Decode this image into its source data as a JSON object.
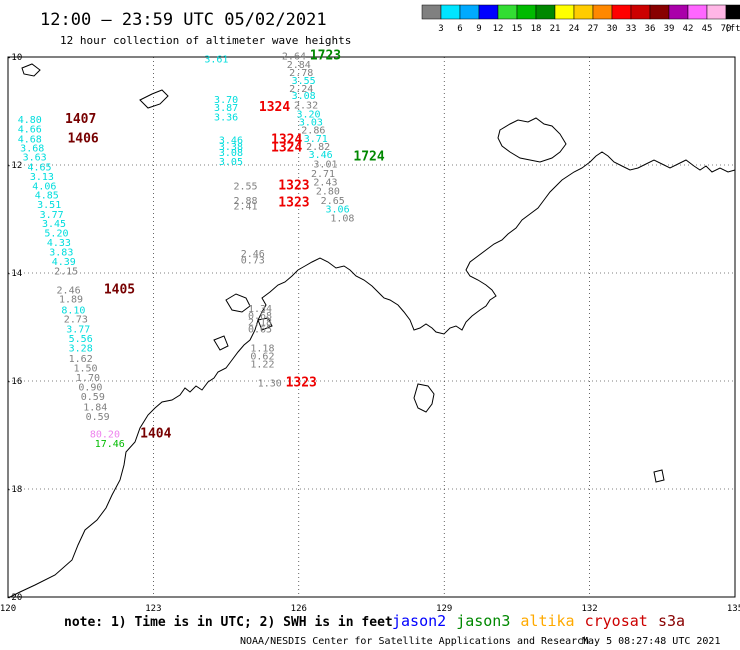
{
  "title": "12:00 – 23:59 UTC 05/02/2021",
  "subtitle": "12 hour collection of altimeter wave heights",
  "colorbar": {
    "colors": [
      "#808080",
      "#00e5ff",
      "#00aaff",
      "#0000ff",
      "#33dd33",
      "#00bb00",
      "#008800",
      "#ffff00",
      "#ffcc00",
      "#ff8800",
      "#ff0000",
      "#cc0000",
      "#880000",
      "#aa00aa",
      "#ff66ff",
      "#ffb6e6",
      "#000000"
    ],
    "labels": [
      "3",
      "6",
      "9",
      "12",
      "15",
      "18",
      "21",
      "24",
      "27",
      "30",
      "33",
      "36",
      "39",
      "42",
      "45",
      "70"
    ],
    "unit": "(ft)"
  },
  "axes": {
    "lon_ticks": [
      "120",
      "123",
      "126",
      "129",
      "132",
      "135"
    ],
    "lat_ticks": [
      "-10",
      "-12",
      "-14",
      "-16",
      "-18",
      "-20"
    ]
  },
  "obs": [
    {
      "lon": 124.3,
      "lat": -10.1,
      "v": "3.61",
      "c": "#00dddd"
    },
    {
      "lon": 125.9,
      "lat": -10.05,
      "v": "2.64",
      "c": "#808080"
    },
    {
      "lon": 126.0,
      "lat": -10.2,
      "v": "2.84",
      "c": "#808080"
    },
    {
      "lon": 126.05,
      "lat": -10.35,
      "v": "2.78",
      "c": "#808080"
    },
    {
      "lon": 126.1,
      "lat": -10.5,
      "v": "3.55",
      "c": "#00dddd"
    },
    {
      "lon": 126.05,
      "lat": -10.65,
      "v": "2.24",
      "c": "#808080"
    },
    {
      "lon": 126.1,
      "lat": -10.78,
      "v": "3.08",
      "c": "#00dddd"
    },
    {
      "lon": 126.15,
      "lat": -10.95,
      "v": "2.32",
      "c": "#808080"
    },
    {
      "lon": 126.2,
      "lat": -11.12,
      "v": "3.20",
      "c": "#00dddd"
    },
    {
      "lon": 126.25,
      "lat": -11.27,
      "v": "3.03",
      "c": "#00dddd"
    },
    {
      "lon": 126.3,
      "lat": -11.42,
      "v": "2.86",
      "c": "#808080"
    },
    {
      "lon": 126.35,
      "lat": -11.57,
      "v": "3.71",
      "c": "#00dddd"
    },
    {
      "lon": 126.4,
      "lat": -11.72,
      "v": "2.82",
      "c": "#808080"
    },
    {
      "lon": 126.45,
      "lat": -11.87,
      "v": "3.46",
      "c": "#00dddd"
    },
    {
      "lon": 126.55,
      "lat": -12.05,
      "v": "3.01",
      "c": "#808080"
    },
    {
      "lon": 126.5,
      "lat": -12.22,
      "v": "2.71",
      "c": "#808080"
    },
    {
      "lon": 126.55,
      "lat": -12.38,
      "v": "2.43",
      "c": "#808080"
    },
    {
      "lon": 126.6,
      "lat": -12.55,
      "v": "2.80",
      "c": "#808080"
    },
    {
      "lon": 126.7,
      "lat": -12.72,
      "v": "2.65",
      "c": "#808080"
    },
    {
      "lon": 126.8,
      "lat": -12.88,
      "v": "3.06",
      "c": "#00dddd"
    },
    {
      "lon": 126.9,
      "lat": -13.05,
      "v": "1.08",
      "c": "#808080"
    },
    {
      "lon": 124.5,
      "lat": -10.85,
      "v": "3.70",
      "c": "#00dddd"
    },
    {
      "lon": 124.5,
      "lat": -11.0,
      "v": "3.87",
      "c": "#00dddd"
    },
    {
      "lon": 124.5,
      "lat": -11.18,
      "v": "3.36",
      "c": "#00dddd"
    },
    {
      "lon": 124.6,
      "lat": -11.6,
      "v": "3.46",
      "c": "#00dddd"
    },
    {
      "lon": 124.6,
      "lat": -11.72,
      "v": "3.38",
      "c": "#00dddd"
    },
    {
      "lon": 124.6,
      "lat": -11.83,
      "v": "3.08",
      "c": "#00dddd"
    },
    {
      "lon": 124.6,
      "lat": -12.0,
      "v": "3.05",
      "c": "#00dddd"
    },
    {
      "lon": 124.9,
      "lat": -12.45,
      "v": "2.55",
      "c": "#808080"
    },
    {
      "lon": 124.9,
      "lat": -12.72,
      "v": "2.88",
      "c": "#808080"
    },
    {
      "lon": 124.9,
      "lat": -12.82,
      "v": "2.41",
      "c": "#808080"
    },
    {
      "lon": 125.05,
      "lat": -13.7,
      "v": "2.46",
      "c": "#808080"
    },
    {
      "lon": 125.05,
      "lat": -13.82,
      "v": "0.73",
      "c": "#808080"
    },
    {
      "lon": 125.2,
      "lat": -14.72,
      "v": "1.34",
      "c": "#808080"
    },
    {
      "lon": 125.2,
      "lat": -14.85,
      "v": "0.68",
      "c": "#808080"
    },
    {
      "lon": 125.2,
      "lat": -14.97,
      "v": "2.18",
      "c": "#808080"
    },
    {
      "lon": 125.2,
      "lat": -15.1,
      "v": "0.65",
      "c": "#808080"
    },
    {
      "lon": 125.25,
      "lat": -15.45,
      "v": "1.18",
      "c": "#808080"
    },
    {
      "lon": 125.25,
      "lat": -15.6,
      "v": "0.62",
      "c": "#808080"
    },
    {
      "lon": 125.25,
      "lat": -15.75,
      "v": "1.22",
      "c": "#808080"
    },
    {
      "lon": 125.4,
      "lat": -16.1,
      "v": "1.30",
      "c": "#808080"
    },
    {
      "lon": 120.45,
      "lat": -11.22,
      "v": "4.80",
      "c": "#00dddd"
    },
    {
      "lon": 120.45,
      "lat": -11.4,
      "v": "4.66",
      "c": "#00dddd"
    },
    {
      "lon": 120.45,
      "lat": -11.58,
      "v": "4.68",
      "c": "#00dddd"
    },
    {
      "lon": 120.5,
      "lat": -11.75,
      "v": "3.68",
      "c": "#00dddd"
    },
    {
      "lon": 120.55,
      "lat": -11.92,
      "v": "3.63",
      "c": "#00dddd"
    },
    {
      "lon": 120.65,
      "lat": -12.1,
      "v": "4.65",
      "c": "#00dddd"
    },
    {
      "lon": 120.7,
      "lat": -12.28,
      "v": "3.13",
      "c": "#00dddd"
    },
    {
      "lon": 120.75,
      "lat": -12.45,
      "v": "4.06",
      "c": "#00dddd"
    },
    {
      "lon": 120.8,
      "lat": -12.62,
      "v": "4.85",
      "c": "#00dddd"
    },
    {
      "lon": 120.85,
      "lat": -12.8,
      "v": "3.51",
      "c": "#00dddd"
    },
    {
      "lon": 120.9,
      "lat": -12.98,
      "v": "3.77",
      "c": "#00dddd"
    },
    {
      "lon": 120.95,
      "lat": -13.15,
      "v": "3.45",
      "c": "#00dddd"
    },
    {
      "lon": 121.0,
      "lat": -13.32,
      "v": "5.20",
      "c": "#00dddd"
    },
    {
      "lon": 121.05,
      "lat": -13.5,
      "v": "4.33",
      "c": "#00dddd"
    },
    {
      "lon": 121.1,
      "lat": -13.68,
      "v": "3.83",
      "c": "#00dddd"
    },
    {
      "lon": 121.15,
      "lat": -13.85,
      "v": "4.39",
      "c": "#00dddd"
    },
    {
      "lon": 121.2,
      "lat": -14.03,
      "v": "2.15",
      "c": "#808080"
    },
    {
      "lon": 121.25,
      "lat": -14.38,
      "v": "2.46",
      "c": "#808080"
    },
    {
      "lon": 121.3,
      "lat": -14.55,
      "v": "1.89",
      "c": "#808080"
    },
    {
      "lon": 121.35,
      "lat": -14.75,
      "v": "8.10",
      "c": "#00dddd"
    },
    {
      "lon": 121.4,
      "lat": -14.92,
      "v": "2.73",
      "c": "#808080"
    },
    {
      "lon": 121.45,
      "lat": -15.1,
      "v": "3.77",
      "c": "#00dddd"
    },
    {
      "lon": 121.5,
      "lat": -15.28,
      "v": "5.56",
      "c": "#00dddd"
    },
    {
      "lon": 121.5,
      "lat": -15.45,
      "v": "3.28",
      "c": "#00dddd"
    },
    {
      "lon": 121.5,
      "lat": -15.65,
      "v": "1.62",
      "c": "#808080"
    },
    {
      "lon": 121.6,
      "lat": -15.82,
      "v": "1.50",
      "c": "#808080"
    },
    {
      "lon": 121.65,
      "lat": -16.0,
      "v": "1.70",
      "c": "#808080"
    },
    {
      "lon": 121.7,
      "lat": -16.18,
      "v": "0.90",
      "c": "#808080"
    },
    {
      "lon": 121.75,
      "lat": -16.35,
      "v": "0.59",
      "c": "#808080"
    },
    {
      "lon": 121.8,
      "lat": -16.55,
      "v": "1.84",
      "c": "#808080"
    },
    {
      "lon": 121.85,
      "lat": -16.72,
      "v": "0.59",
      "c": "#808080"
    },
    {
      "lon": 122.0,
      "lat": -17.05,
      "v": "80.20",
      "c": "#ee82ee"
    },
    {
      "lon": 122.1,
      "lat": -17.22,
      "v": "17.46",
      "c": "#00bb00"
    }
  ],
  "times": [
    {
      "lon": 126.55,
      "lat": -10.05,
      "t": "1723",
      "c": "#008800"
    },
    {
      "lon": 121.5,
      "lat": -11.22,
      "t": "1407",
      "c": "#770000"
    },
    {
      "lon": 121.55,
      "lat": -11.58,
      "t": "1406",
      "c": "#770000"
    },
    {
      "lon": 125.5,
      "lat": -11.0,
      "t": "1324",
      "c": "#ee0000"
    },
    {
      "lon": 125.75,
      "lat": -11.6,
      "t": "1324",
      "c": "#ee0000"
    },
    {
      "lon": 125.75,
      "lat": -11.75,
      "t": "1324",
      "c": "#ee0000"
    },
    {
      "lon": 127.45,
      "lat": -11.92,
      "t": "1724",
      "c": "#008800"
    },
    {
      "lon": 125.9,
      "lat": -12.45,
      "t": "1323",
      "c": "#ee0000"
    },
    {
      "lon": 125.9,
      "lat": -12.77,
      "t": "1323",
      "c": "#ee0000"
    },
    {
      "lon": 122.3,
      "lat": -14.38,
      "t": "1405",
      "c": "#770000"
    },
    {
      "lon": 126.05,
      "lat": -16.1,
      "t": "1323",
      "c": "#ee0000"
    },
    {
      "lon": 123.05,
      "lat": -17.05,
      "t": "1404",
      "c": "#770000"
    }
  ],
  "footer": {
    "note": "note: 1) Time is in UTC; 2) SWH is in feet",
    "satellites": [
      {
        "name": "jason2",
        "color": "#0000ff"
      },
      {
        "name": "jason3",
        "color": "#008800"
      },
      {
        "name": "altika",
        "color": "#ffaa00"
      },
      {
        "name": "cryosat",
        "color": "#cc0000"
      },
      {
        "name": "s3a",
        "color": "#880000"
      }
    ],
    "credit": "NOAA/NESDIS Center for Satellite Applications and Research",
    "timestamp": "May  5 08:27:48 UTC 2021"
  }
}
